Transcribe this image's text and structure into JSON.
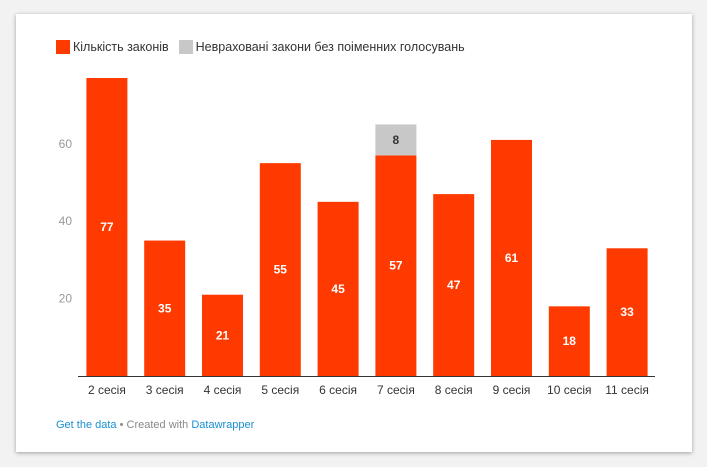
{
  "legend": {
    "items": [
      {
        "label": "Кількість законів",
        "color": "#ff3a00"
      },
      {
        "label": "Невраховані закони без поіменних голосувань",
        "color": "#c8c8c8"
      }
    ]
  },
  "chart_data": {
    "type": "bar",
    "stacked": true,
    "categories": [
      "2 сесія",
      "3 сесія",
      "4 сесія",
      "5 сесія",
      "6 сесія",
      "7 сесія",
      "8 сесія",
      "9 сесія",
      "10 сесія",
      "11 сесія"
    ],
    "series": [
      {
        "name": "Кількість законів",
        "color": "#ff3a00",
        "values": [
          77,
          35,
          21,
          55,
          45,
          57,
          47,
          61,
          18,
          33
        ]
      },
      {
        "name": "Невраховані закони без поіменних голосувань",
        "color": "#c8c8c8",
        "values": [
          0,
          0,
          0,
          0,
          0,
          8,
          0,
          0,
          0,
          0
        ]
      }
    ],
    "yticks": [
      20,
      40,
      60
    ],
    "ylim": [
      0,
      77
    ],
    "grid": false,
    "legend_position": "top-left"
  },
  "footer": {
    "get_data": "Get the data",
    "separator": "• Created with",
    "tool": "Datawrapper"
  }
}
